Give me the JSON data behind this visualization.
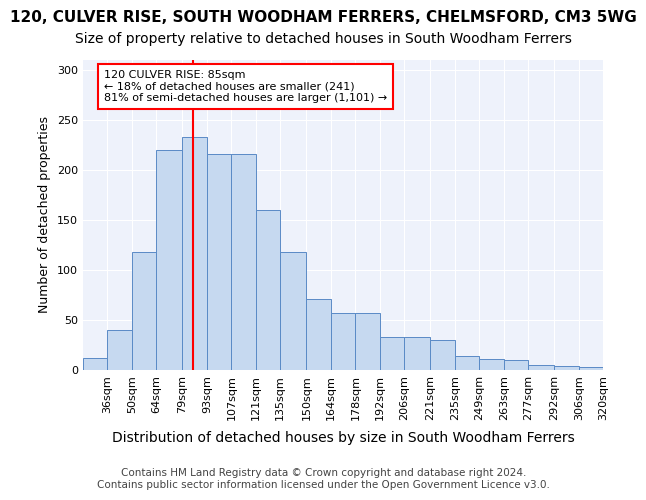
{
  "title": "120, CULVER RISE, SOUTH WOODHAM FERRERS, CHELMSFORD, CM3 5WG",
  "subtitle": "Size of property relative to detached houses in South Woodham Ferrers",
  "xlabel": "Distribution of detached houses by size in South Woodham Ferrers",
  "ylabel": "Number of detached properties",
  "footer_line1": "Contains HM Land Registry data © Crown copyright and database right 2024.",
  "footer_line2": "Contains public sector information licensed under the Open Government Licence v3.0.",
  "categories": [
    "36sqm",
    "50sqm",
    "64sqm",
    "79sqm",
    "93sqm",
    "107sqm",
    "121sqm",
    "135sqm",
    "150sqm",
    "164sqm",
    "178sqm",
    "192sqm",
    "206sqm",
    "221sqm",
    "235sqm",
    "249sqm",
    "263sqm",
    "277sqm",
    "292sqm",
    "306sqm",
    "320sqm"
  ],
  "bar_values": [
    12,
    40,
    118,
    220,
    233,
    216,
    216,
    160,
    118,
    71,
    57,
    57,
    33,
    33,
    30,
    14,
    11,
    10,
    5,
    4,
    3
  ],
  "bin_edges": [
    22,
    36,
    50,
    64,
    79,
    93,
    107,
    121,
    135,
    150,
    164,
    178,
    192,
    206,
    221,
    235,
    249,
    263,
    277,
    292,
    306,
    320
  ],
  "bar_color": "#c6d9f0",
  "bar_edge_color": "#5a8ac6",
  "vline_x": 85,
  "vline_color": "red",
  "annotation_text": "120 CULVER RISE: 85sqm\n← 18% of detached houses are smaller (241)\n81% of semi-detached houses are larger (1,101) →",
  "annotation_box_color": "white",
  "annotation_box_edge": "red",
  "ylim": [
    0,
    310
  ],
  "yticks": [
    0,
    50,
    100,
    150,
    200,
    250,
    300
  ],
  "bg_color": "#eef2fb",
  "grid_color": "white",
  "title_fontsize": 11,
  "subtitle_fontsize": 10,
  "xlabel_fontsize": 10,
  "ylabel_fontsize": 9,
  "tick_fontsize": 8,
  "footer_fontsize": 7.5
}
